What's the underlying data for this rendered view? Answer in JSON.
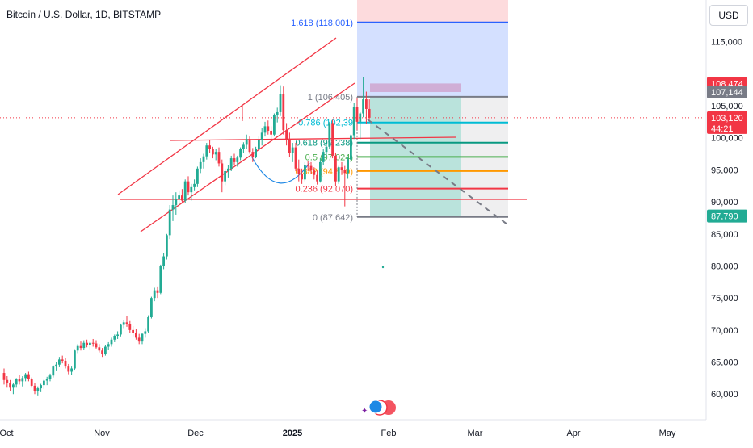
{
  "header": {
    "title": "Bitcoin / U.S. Dollar, 1D, BITSTAMP",
    "currency": "USD"
  },
  "colors": {
    "up": "#22ab94",
    "down": "#f23645",
    "channel": "#f23645",
    "fib_618": "#2962ff",
    "fib_1": "#787b86",
    "fib_786": "#00bcd4",
    "fib_618b": "#089981",
    "fib_5": "#4caf50",
    "fib_382": "#ff9800",
    "fib_236": "#f23645",
    "fib_0": "#787b86"
  },
  "chart_data": {
    "type": "candlestick",
    "title": "Bitcoin / U.S. Dollar, 1D, BITSTAMP",
    "x_ticks": [
      "Oct",
      "Nov",
      "Dec",
      "2025",
      "Feb",
      "Mar",
      "Apr",
      "May"
    ],
    "y_ticks": [
      "115,000",
      "105,000",
      "100,000",
      "95,000",
      "90,000",
      "85,000",
      "80,000",
      "75,000",
      "70,000",
      "65,000",
      "60,000"
    ],
    "ylim": [
      56000,
      121500
    ],
    "grid": false,
    "price_labels": [
      {
        "text": "108,474",
        "value": 108474,
        "style": "red"
      },
      {
        "text": "107,144",
        "value": 107144,
        "style": "grey"
      },
      {
        "text": "103,120",
        "value": 103120,
        "style": "red",
        "sub": "44:21"
      },
      {
        "text": "87,790",
        "value": 87790,
        "style": "green"
      }
    ],
    "fib_levels": [
      {
        "label": "1.618 (118,001)",
        "ratio": 1.618,
        "price": 118001
      },
      {
        "label": "1 (106,405)",
        "ratio": 1,
        "price": 106405
      },
      {
        "label": "0.786 (102,39",
        "ratio": 0.786,
        "price": 102390
      },
      {
        "label": "0.618 (99,238)",
        "ratio": 0.618,
        "price": 99238
      },
      {
        "label": "0.5 (97,024)",
        "ratio": 0.5,
        "price": 97024
      },
      {
        "label": "0.382 (94,810)",
        "ratio": 0.382,
        "price": 94810
      },
      {
        "label": "0.236 (92,070)",
        "ratio": 0.236,
        "price": 92070
      },
      {
        "label": "0 (87,642)",
        "ratio": 0,
        "price": 87642
      }
    ],
    "candles": [
      [
        63300,
        64000,
        61500,
        62200
      ],
      [
        62200,
        62800,
        61000,
        61800
      ],
      [
        61800,
        62200,
        60500,
        61000
      ],
      [
        61000,
        61800,
        60000,
        61500
      ],
      [
        61500,
        62500,
        61000,
        62300
      ],
      [
        62300,
        63000,
        61500,
        62000
      ],
      [
        62000,
        62800,
        61200,
        62500
      ],
      [
        62500,
        63300,
        62000,
        63100
      ],
      [
        63100,
        63500,
        62000,
        62400
      ],
      [
        62400,
        62600,
        61000,
        61300
      ],
      [
        61300,
        61800,
        60000,
        60500
      ],
      [
        60500,
        61200,
        59800,
        60900
      ],
      [
        60900,
        61600,
        60300,
        61400
      ],
      [
        61400,
        62300,
        60800,
        62100
      ],
      [
        62100,
        62700,
        61400,
        62400
      ],
      [
        62400,
        63200,
        62000,
        62900
      ],
      [
        62900,
        64500,
        62600,
        64300
      ],
      [
        64300,
        65000,
        63700,
        64600
      ],
      [
        64600,
        65800,
        64200,
        65400
      ],
      [
        65400,
        66000,
        64800,
        65200
      ],
      [
        65200,
        65600,
        64000,
        64300
      ],
      [
        64300,
        64700,
        63100,
        63500
      ],
      [
        63500,
        64300,
        63000,
        64000
      ],
      [
        64000,
        67000,
        63800,
        66800
      ],
      [
        66800,
        67800,
        66400,
        67500
      ],
      [
        67500,
        68200,
        66800,
        67200
      ],
      [
        67200,
        68400,
        66900,
        68000
      ],
      [
        68000,
        68500,
        67300,
        67600
      ],
      [
        67600,
        68200,
        67000,
        68000
      ],
      [
        68000,
        68600,
        67400,
        67900
      ],
      [
        67900,
        68400,
        67100,
        67300
      ],
      [
        67300,
        67800,
        66500,
        66800
      ],
      [
        66800,
        67200,
        65800,
        66200
      ],
      [
        66200,
        67600,
        66000,
        67400
      ],
      [
        67400,
        68100,
        66900,
        67800
      ],
      [
        67800,
        68800,
        67400,
        68500
      ],
      [
        68500,
        69300,
        68100,
        69100
      ],
      [
        69100,
        69800,
        68600,
        69300
      ],
      [
        69300,
        71000,
        69000,
        70800
      ],
      [
        70800,
        71600,
        70300,
        71200
      ],
      [
        71200,
        72200,
        70500,
        70900
      ],
      [
        70900,
        71400,
        69600,
        70000
      ],
      [
        70000,
        70600,
        69000,
        69600
      ],
      [
        69600,
        70200,
        68500,
        68800
      ],
      [
        68800,
        69400,
        67800,
        68200
      ],
      [
        68200,
        69600,
        67800,
        69400
      ],
      [
        69400,
        70300,
        68800,
        69800
      ],
      [
        69800,
        72300,
        69600,
        72000
      ],
      [
        72000,
        75200,
        71800,
        75000
      ],
      [
        75000,
        76600,
        74500,
        76200
      ],
      [
        76200,
        76800,
        75000,
        75800
      ],
      [
        75800,
        80200,
        75600,
        80000
      ],
      [
        80000,
        82000,
        79500,
        81500
      ],
      [
        81500,
        85000,
        81000,
        84800
      ],
      [
        84800,
        89500,
        84200,
        88800
      ],
      [
        88800,
        91000,
        87000,
        89500
      ],
      [
        89500,
        91500,
        88000,
        90500
      ],
      [
        90500,
        91800,
        89500,
        91000
      ],
      [
        91000,
        92000,
        89800,
        90200
      ],
      [
        90200,
        93500,
        89800,
        93200
      ],
      [
        93200,
        94000,
        91000,
        91500
      ],
      [
        91500,
        92800,
        90200,
        92300
      ],
      [
        92300,
        93500,
        91800,
        92800
      ],
      [
        92800,
        95500,
        92300,
        95200
      ],
      [
        95200,
        96800,
        94500,
        96200
      ],
      [
        96200,
        97500,
        95200,
        97100
      ],
      [
        97100,
        99200,
        96600,
        98800
      ],
      [
        98800,
        99600,
        97600,
        98200
      ],
      [
        98200,
        98600,
        96800,
        97400
      ],
      [
        97400,
        98200,
        96500,
        97800
      ],
      [
        97800,
        98500,
        95500,
        96000
      ],
      [
        96000,
        96600,
        91500,
        93200
      ],
      [
        93200,
        95200,
        92600,
        94800
      ],
      [
        94800,
        95800,
        93800,
        95200
      ],
      [
        95200,
        97200,
        94800,
        96800
      ],
      [
        96800,
        97500,
        95800,
        96200
      ],
      [
        96200,
        97200,
        95500,
        96900
      ],
      [
        96900,
        98500,
        96500,
        98200
      ],
      [
        98200,
        99300,
        97600,
        98900
      ],
      [
        98900,
        100500,
        98200,
        99800
      ],
      [
        99800,
        100200,
        97500,
        97800
      ],
      [
        97800,
        98400,
        96200,
        97000
      ],
      [
        97000,
        98600,
        96800,
        98300
      ],
      [
        98300,
        100200,
        98000,
        99700
      ],
      [
        99700,
        101500,
        98800,
        100800
      ],
      [
        100800,
        102500,
        100200,
        101800
      ],
      [
        101800,
        102700,
        100500,
        101100
      ],
      [
        101100,
        101800,
        99800,
        100500
      ],
      [
        100500,
        103800,
        100200,
        103500
      ],
      [
        103500,
        104700,
        102400,
        104000
      ],
      [
        104000,
        108200,
        103400,
        106800
      ],
      [
        106800,
        108000,
        100500,
        101200
      ],
      [
        101200,
        102300,
        98800,
        99800
      ],
      [
        99800,
        100800,
        97000,
        97600
      ],
      [
        97600,
        99200,
        96200,
        98500
      ],
      [
        98500,
        99200,
        94800,
        95200
      ],
      [
        95200,
        96600,
        93200,
        94300
      ],
      [
        94300,
        95200,
        92800,
        93500
      ],
      [
        93500,
        96200,
        93200,
        95800
      ],
      [
        95800,
        96400,
        94800,
        95600
      ],
      [
        95600,
        96200,
        94400,
        94900
      ],
      [
        94900,
        95400,
        93500,
        94200
      ],
      [
        94200,
        94900,
        92700,
        93200
      ],
      [
        93200,
        96800,
        93000,
        96200
      ],
      [
        96200,
        98200,
        95800,
        97800
      ],
      [
        97800,
        99200,
        97200,
        98600
      ],
      [
        98600,
        102500,
        98200,
        102300
      ],
      [
        102300,
        102800,
        96800,
        97200
      ],
      [
        97200,
        97700,
        92500,
        93200
      ],
      [
        93200,
        95600,
        92800,
        95400
      ],
      [
        95400,
        96200,
        94200,
        95000
      ],
      [
        95000,
        95600,
        89300,
        94500
      ],
      [
        94500,
        97000,
        93600,
        96600
      ],
      [
        96600,
        100600,
        96200,
        100400
      ],
      [
        100400,
        105500,
        99800,
        104800
      ],
      [
        104800,
        106200,
        101200,
        102500
      ],
      [
        102500,
        104000,
        99800,
        103800
      ],
      [
        103800,
        109500,
        103200,
        106000
      ],
      [
        106000,
        107200,
        102200,
        104500
      ],
      [
        104500,
        106000,
        102600,
        103120
      ]
    ]
  }
}
